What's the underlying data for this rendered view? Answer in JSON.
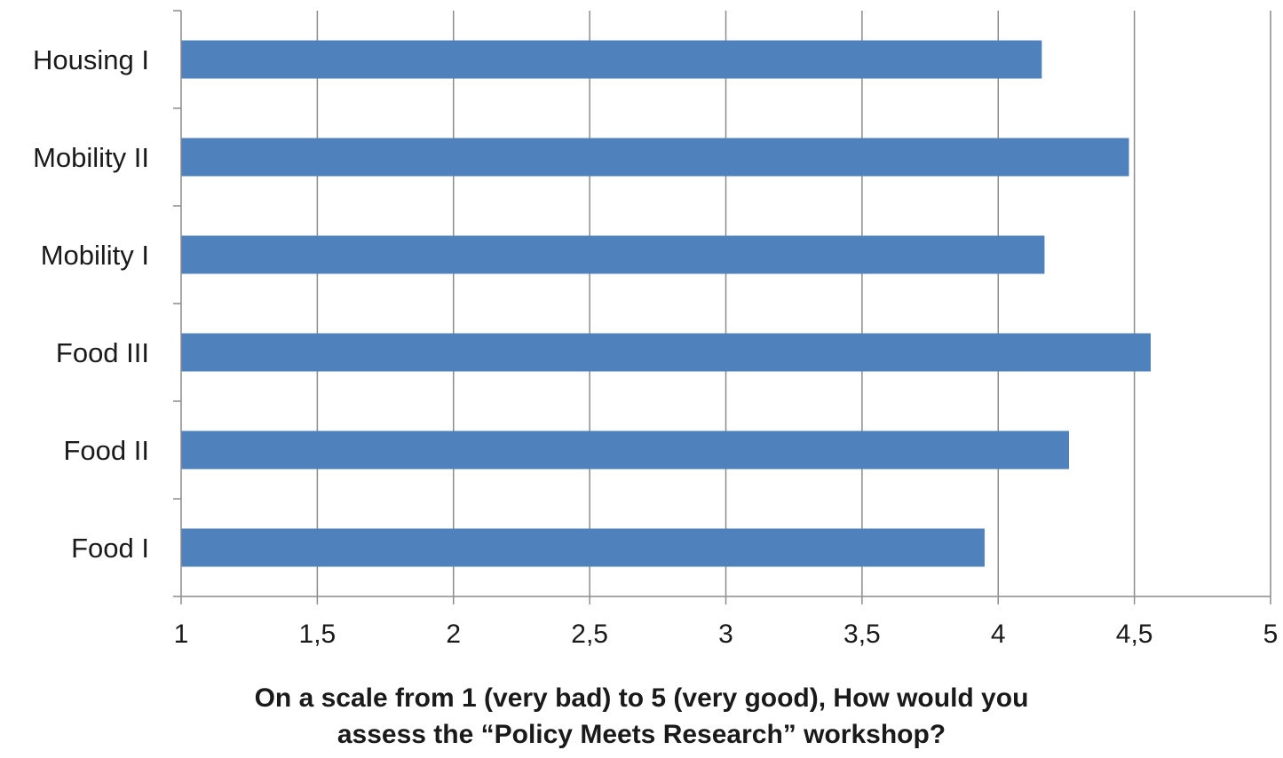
{
  "chart_data": {
    "type": "bar",
    "orientation": "horizontal",
    "categories": [
      "Food I",
      "Food II",
      "Food III",
      "Mobility I",
      "Mobility II",
      "Housing I"
    ],
    "values": [
      3.95,
      4.26,
      4.56,
      4.17,
      4.48,
      4.16
    ],
    "xlim": [
      1,
      5
    ],
    "ticks": [
      "1",
      "1,5",
      "2",
      "2,5",
      "3",
      "3,5",
      "4",
      "4,5",
      "5"
    ],
    "tick_values": [
      1,
      1.5,
      2,
      2.5,
      3,
      3.5,
      4,
      4.5,
      5
    ],
    "xlabel_line1": "On a scale from 1 (very bad) to 5 (very good), How would you",
    "xlabel_line2": "assess the “Policy Meets Research” workshop?",
    "grid": "vertical",
    "legend": "none",
    "bar_color": "#4f81bd",
    "grid_color": "#8c8c8c"
  }
}
